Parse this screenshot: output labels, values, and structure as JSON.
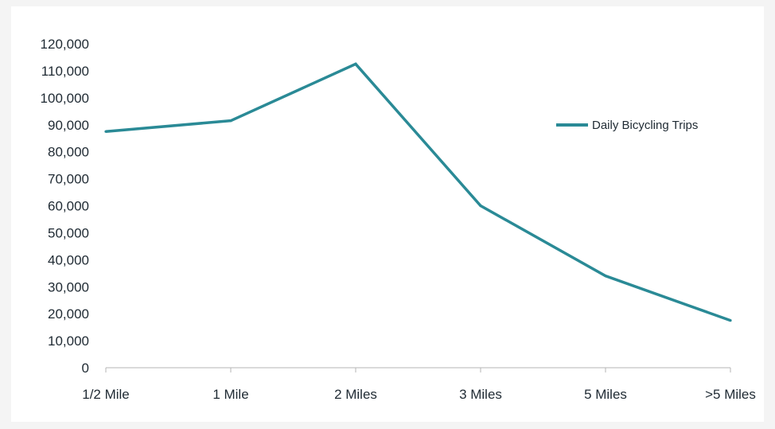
{
  "chart_data": {
    "type": "line",
    "title": "",
    "xlabel": "",
    "ylabel": "",
    "categories": [
      "1/2 Mile",
      "1 Mile",
      "2 Miles",
      "3 Miles",
      "5 Miles",
      ">5 Miles"
    ],
    "series": [
      {
        "name": "Daily Bicycling  Trips",
        "values": [
          87500,
          91500,
          112500,
          60000,
          34000,
          17500
        ],
        "color": "#2a8a96"
      }
    ],
    "ylim": [
      0,
      120000
    ],
    "yticks": [
      0,
      10000,
      20000,
      30000,
      40000,
      50000,
      60000,
      70000,
      80000,
      90000,
      100000,
      110000,
      120000
    ],
    "ytick_labels": [
      "0",
      "10,000",
      "20,000",
      "30,000",
      "40,000",
      "50,000",
      "60,000",
      "70,000",
      "80,000",
      "90,000",
      "100,000",
      "110,000",
      "120,000"
    ],
    "grid": false,
    "legend_position": "right"
  }
}
